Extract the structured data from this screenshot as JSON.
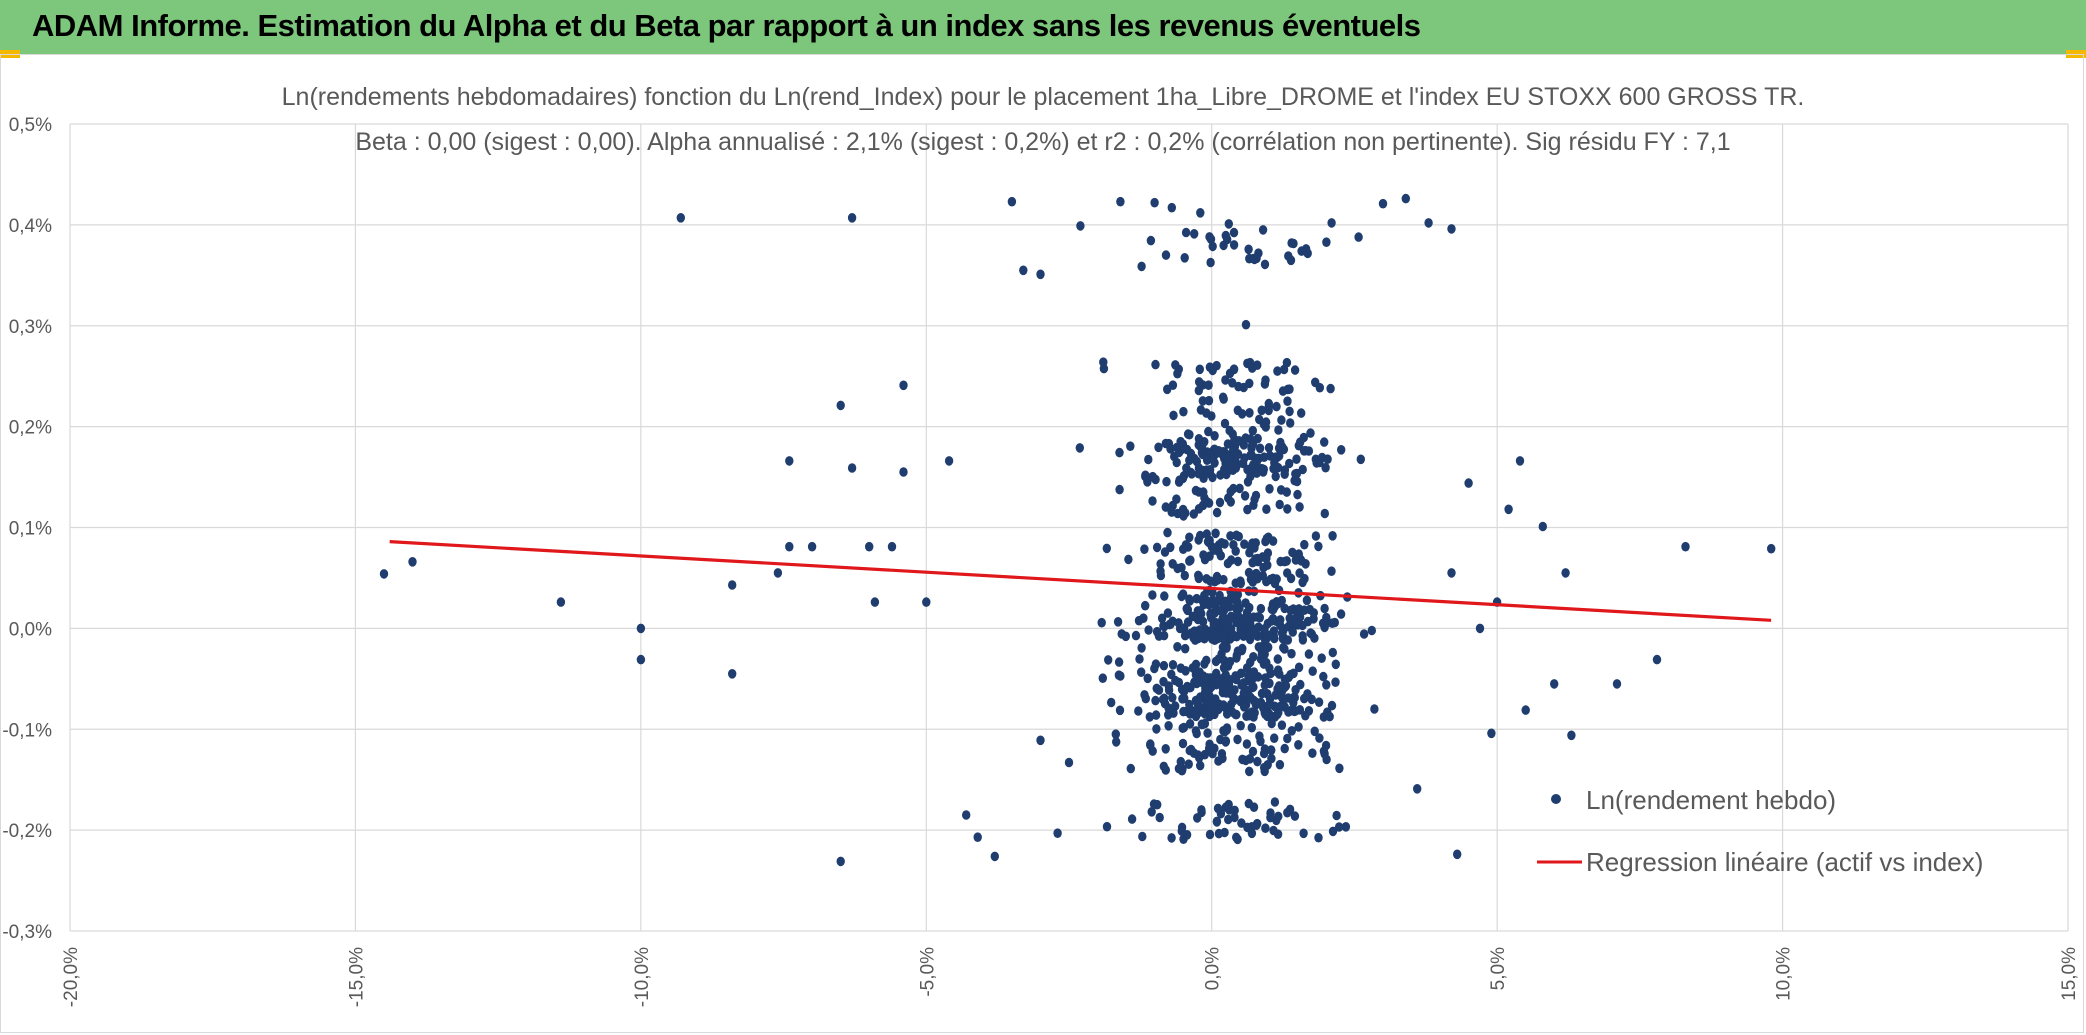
{
  "header": {
    "title": "ADAM Informe. Estimation du Alpha et du Beta par rapport à un index sans les revenus éventuels"
  },
  "colors": {
    "header_bg": "#7dc77c",
    "accent_corner": "#f5b800",
    "points": "#1f3d6e",
    "regression": "#e0171b",
    "grid": "#d9d9d9",
    "text": "#595959"
  },
  "chart_data": {
    "type": "scatter",
    "title": "Ln(rendements hebdomadaires) fonction du Ln(rend_Index) pour le placement 1ha_Libre_DROME et l'index EU STOXX 600 GROSS TR.",
    "subtitle": "Beta : 0,00 (sigest : 0,00). Alpha annualisé : 2,1% (sigest : 0,2%) et r2 : 0,2% (corrélation non pertinente). Sig résidu FY : 7,1",
    "xlim": [
      -20,
      15
    ],
    "ylim": [
      -0.3,
      0.5
    ],
    "x_ticks": [
      -20,
      -15,
      -10,
      -5,
      0,
      5,
      10,
      15
    ],
    "x_tick_labels": [
      "-20,0%",
      "-15,0%",
      "-10,0%",
      "-5,0%",
      "0,0%",
      "5,0%",
      "10,0%",
      "15,0%"
    ],
    "y_ticks": [
      0.5,
      0.4,
      0.3,
      0.2,
      0.1,
      0.0,
      -0.1,
      -0.2,
      -0.3
    ],
    "y_tick_labels": [
      "0,5%",
      "0,4%",
      "0,3%",
      "0,2%",
      "0,1%",
      "0,0%",
      "-0,1%",
      "-0,2%",
      "-0,3%"
    ],
    "grid": true,
    "legend_position": "bottom-right",
    "series": [
      {
        "name": "Ln(rendement hebdo)",
        "kind": "scatter",
        "note": "approx. 1000 weekly points, concentrated between -4% and +4% on x",
        "points": [
          [
            -14.5,
            0.054
          ],
          [
            -14.0,
            0.066
          ],
          [
            -11.4,
            0.026
          ],
          [
            -10.0,
            0.0
          ],
          [
            -10.0,
            -0.031
          ],
          [
            -9.3,
            0.407
          ],
          [
            -8.4,
            0.043
          ],
          [
            -8.4,
            -0.045
          ],
          [
            -7.6,
            0.055
          ],
          [
            -7.4,
            0.166
          ],
          [
            -7.4,
            0.081
          ],
          [
            -7.0,
            0.081
          ],
          [
            -6.5,
            0.221
          ],
          [
            -6.5,
            -0.231
          ],
          [
            -6.3,
            0.407
          ],
          [
            -6.3,
            0.159
          ],
          [
            -6.0,
            0.081
          ],
          [
            -5.9,
            0.026
          ],
          [
            -5.6,
            0.081
          ],
          [
            -5.4,
            0.241
          ],
          [
            -5.4,
            0.155
          ],
          [
            -5.0,
            0.026
          ],
          [
            -4.6,
            0.166
          ],
          [
            -4.3,
            -0.185
          ],
          [
            -4.1,
            -0.207
          ],
          [
            -3.8,
            -0.226
          ],
          [
            -3.5,
            0.423
          ],
          [
            -3.3,
            0.355
          ],
          [
            -3.0,
            0.351
          ],
          [
            -2.7,
            -0.203
          ],
          [
            -2.3,
            0.399
          ],
          [
            -1.6,
            0.423
          ],
          [
            -1.0,
            0.422
          ],
          [
            -0.7,
            0.417
          ],
          [
            -0.2,
            0.412
          ],
          [
            0.3,
            0.401
          ],
          [
            0.6,
            0.301
          ],
          [
            0.9,
            0.395
          ],
          [
            1.4,
            0.382
          ],
          [
            2.1,
            0.402
          ],
          [
            3.0,
            0.421
          ],
          [
            3.4,
            0.426
          ],
          [
            3.8,
            0.402
          ],
          [
            4.2,
            0.396
          ],
          [
            3.6,
            -0.159
          ],
          [
            4.3,
            -0.224
          ],
          [
            4.5,
            0.144
          ],
          [
            5.2,
            0.118
          ],
          [
            5.4,
            0.166
          ],
          [
            5.8,
            0.101
          ],
          [
            6.0,
            -0.055
          ],
          [
            6.2,
            0.055
          ],
          [
            6.3,
            -0.106
          ],
          [
            7.1,
            -0.055
          ],
          [
            7.8,
            -0.031
          ],
          [
            8.3,
            0.081
          ],
          [
            9.8,
            0.079
          ],
          [
            4.9,
            -0.104
          ],
          [
            5.5,
            -0.081
          ],
          [
            4.7,
            0.0
          ],
          [
            5.0,
            0.026
          ],
          [
            4.2,
            0.055
          ],
          [
            -3.0,
            -0.111
          ],
          [
            -2.5,
            -0.133
          ]
        ]
      },
      {
        "name": "Regression linéaire (actif vs index)",
        "kind": "line",
        "x": [
          -14.4,
          9.8
        ],
        "y": [
          0.086,
          0.008
        ]
      }
    ]
  }
}
